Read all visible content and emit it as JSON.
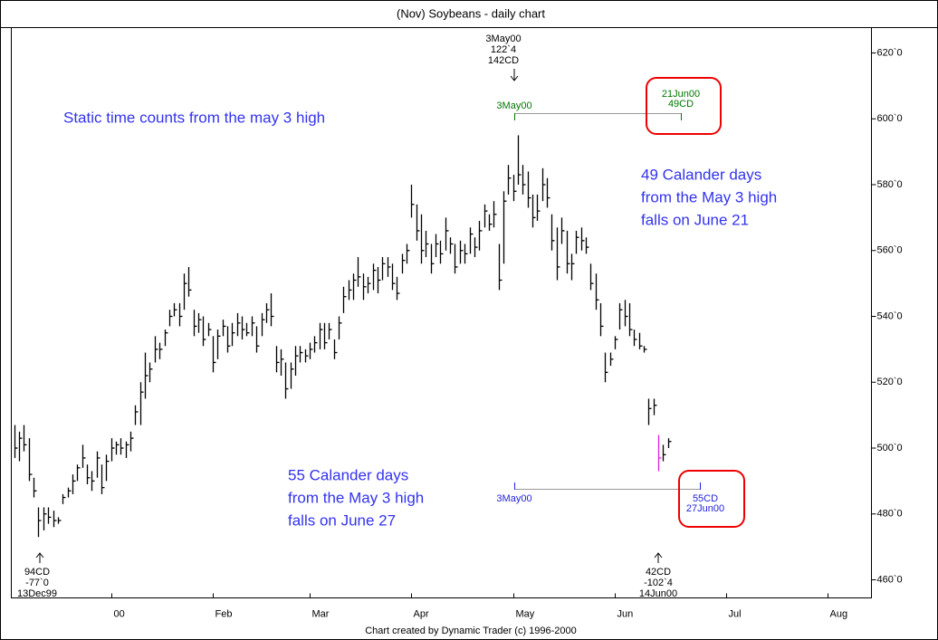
{
  "chart_data": {
    "type": "ohlc",
    "title": "(Nov) Soybeans - daily chart",
    "footer": "Chart created by Dynamic Trader (c) 1996-2000",
    "color": "#000000",
    "highlight": {
      "index": 133,
      "color": "#e020e0"
    },
    "high": [
      507,
      505,
      507,
      503,
      491,
      482,
      482,
      482,
      481,
      479,
      486,
      488,
      492,
      495,
      501,
      495,
      493,
      499,
      495,
      498,
      503,
      502,
      503,
      502,
      505,
      513,
      520,
      529,
      526,
      534,
      532,
      536,
      542,
      544,
      544,
      553,
      555,
      542,
      541,
      540,
      538,
      534,
      536,
      539,
      537,
      538,
      541,
      540,
      538,
      540,
      537,
      541,
      544,
      547,
      531,
      530,
      526,
      526,
      531,
      531,
      530,
      532,
      534,
      538,
      538,
      538,
      533,
      540,
      549,
      551,
      553,
      558,
      553,
      552,
      556,
      555,
      558,
      558,
      556,
      552,
      559,
      562,
      580,
      574,
      571,
      566,
      562,
      565,
      563,
      570,
      564,
      562,
      563,
      562,
      567,
      564,
      569,
      574,
      571,
      575,
      562,
      578,
      586,
      583,
      595,
      586,
      584,
      577,
      577,
      585,
      582,
      571,
      567,
      570,
      566,
      559,
      566,
      567,
      564,
      556,
      553,
      544,
      529,
      529,
      534,
      544,
      545,
      544,
      536,
      535,
      531,
      515,
      515,
      504,
      501,
      503
    ],
    "low": [
      497,
      496,
      499,
      490,
      485,
      473,
      475,
      477,
      476,
      477,
      483,
      485,
      486,
      490,
      494,
      489,
      487,
      491,
      486,
      490,
      496,
      498,
      498,
      497,
      499,
      507,
      507,
      515,
      520,
      526,
      527,
      531,
      537,
      540,
      537,
      542,
      546,
      534,
      535,
      531,
      534,
      523,
      527,
      534,
      529,
      531,
      534,
      533,
      534,
      534,
      529,
      534,
      538,
      537,
      523,
      522,
      515,
      518,
      522,
      526,
      526,
      527,
      529,
      530,
      530,
      533,
      527,
      533,
      541,
      545,
      545,
      549,
      545,
      547,
      548,
      547,
      551,
      552,
      548,
      545,
      553,
      556,
      570,
      563,
      556,
      558,
      553,
      558,
      556,
      560,
      559,
      553,
      556,
      556,
      559,
      558,
      560,
      567,
      566,
      567,
      548,
      556,
      577,
      575,
      580,
      577,
      573,
      567,
      569,
      575,
      573,
      560,
      551,
      562,
      553,
      551,
      559,
      560,
      559,
      548,
      542,
      534,
      520,
      525,
      530,
      536,
      537,
      534,
      531,
      530,
      529,
      507,
      510,
      493,
      496,
      500
    ],
    "close": [
      500,
      503,
      501,
      492,
      487,
      478,
      480,
      479,
      478,
      478,
      485,
      487,
      490,
      494,
      497,
      491,
      490,
      497,
      488,
      496,
      500,
      501,
      500,
      501,
      503,
      511,
      517,
      522,
      524,
      530,
      530,
      535,
      540,
      542,
      540,
      550,
      548,
      537,
      539,
      533,
      536,
      526,
      534,
      537,
      531,
      535,
      538,
      536,
      535,
      538,
      531,
      539,
      542,
      540,
      526,
      527,
      518,
      524,
      528,
      529,
      528,
      530,
      532,
      536,
      532,
      536,
      529,
      538,
      546,
      548,
      551,
      552,
      549,
      550,
      554,
      551,
      556,
      555,
      550,
      547,
      557,
      560,
      574,
      566,
      560,
      562,
      556,
      562,
      559,
      566,
      562,
      555,
      560,
      559,
      565,
      561,
      566,
      572,
      568,
      571,
      551,
      575,
      582,
      578,
      583,
      580,
      576,
      570,
      572,
      580,
      576,
      563,
      555,
      566,
      556,
      556,
      564,
      563,
      561,
      550,
      545,
      537,
      523,
      527,
      533,
      542,
      540,
      536,
      533,
      531,
      530,
      512,
      513,
      497,
      498,
      502
    ],
    "xlim": [
      -0.6,
      177
    ],
    "xticks": [
      {
        "value": 20,
        "label": "00"
      },
      {
        "value": 41,
        "label": "Feb"
      },
      {
        "value": 61,
        "label": "Mar"
      },
      {
        "value": 82,
        "label": "Apr"
      },
      {
        "value": 103,
        "label": "May"
      },
      {
        "value": 124,
        "label": "Jun"
      },
      {
        "value": 147,
        "label": "Jul"
      },
      {
        "value": 168,
        "label": "Aug"
      }
    ],
    "ylim": [
      454.5,
      627.7
    ],
    "yticks": [
      {
        "value": 460,
        "label": "460`0"
      },
      {
        "value": 480,
        "label": "480`0"
      },
      {
        "value": 500,
        "label": "500`0"
      },
      {
        "value": 520,
        "label": "520`0"
      },
      {
        "value": 540,
        "label": "540`0"
      },
      {
        "value": 560,
        "label": "560`0"
      },
      {
        "value": 580,
        "label": "580`0"
      },
      {
        "value": 600,
        "label": "600`0"
      },
      {
        "value": 620,
        "label": "620`0"
      }
    ],
    "annotations": {
      "high_pivot": [
        "3May00",
        "122`4",
        "142CD"
      ],
      "low_pivot_left": [
        "94CD",
        "-77`0",
        "13Dec99"
      ],
      "low_pivot_right": [
        "42CD",
        "-102`4",
        "14Jun00"
      ],
      "count_top": {
        "start": "3May00",
        "end": [
          "21Jun00",
          "49CD"
        ]
      },
      "count_bottom": {
        "start": "3May00",
        "end": [
          "55CD",
          "27Jun00"
        ]
      },
      "note_top": "Static time counts from the may 3 high",
      "note_right": [
        "49 Calander days",
        "from the May 3 high",
        "falls on June 21"
      ],
      "note_bottom": [
        "55 Calander days",
        "from the May 3 high",
        "falls on June 27"
      ]
    }
  }
}
